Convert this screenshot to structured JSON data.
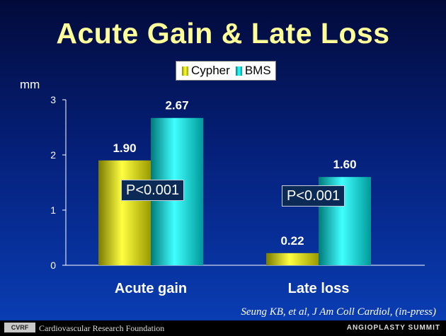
{
  "title": "Acute Gain & Late Loss",
  "ylabel": "mm",
  "legend": [
    "Cypher",
    "BMS"
  ],
  "pvalues": [
    "P<0.001",
    "P<0.001"
  ],
  "citation": "Seung KB, et al, J Am Coll Cardiol, (in-press)",
  "footer": {
    "logo_text": "CVRF",
    "organization": "Cardiovascular Research Foundation",
    "summit": "ANGIOPLASTY SUMMIT"
  },
  "colors": {
    "cypher": "#e6e600",
    "bms": "#00e0e0"
  },
  "chart_data": {
    "type": "bar",
    "title": "Acute Gain & Late Loss",
    "xlabel": "",
    "ylabel": "mm",
    "categories": [
      "Acute gain",
      "Late loss"
    ],
    "series": [
      {
        "name": "Cypher",
        "values": [
          1.9,
          0.22
        ],
        "labels": [
          "1.90",
          "0.22"
        ]
      },
      {
        "name": "BMS",
        "values": [
          2.67,
          1.6
        ],
        "labels": [
          "2.67",
          "1.60"
        ]
      }
    ],
    "ylim": [
      0,
      3
    ],
    "yticks": [
      "0",
      "1",
      "2",
      "3"
    ],
    "grid": false,
    "legend": "top-center"
  }
}
